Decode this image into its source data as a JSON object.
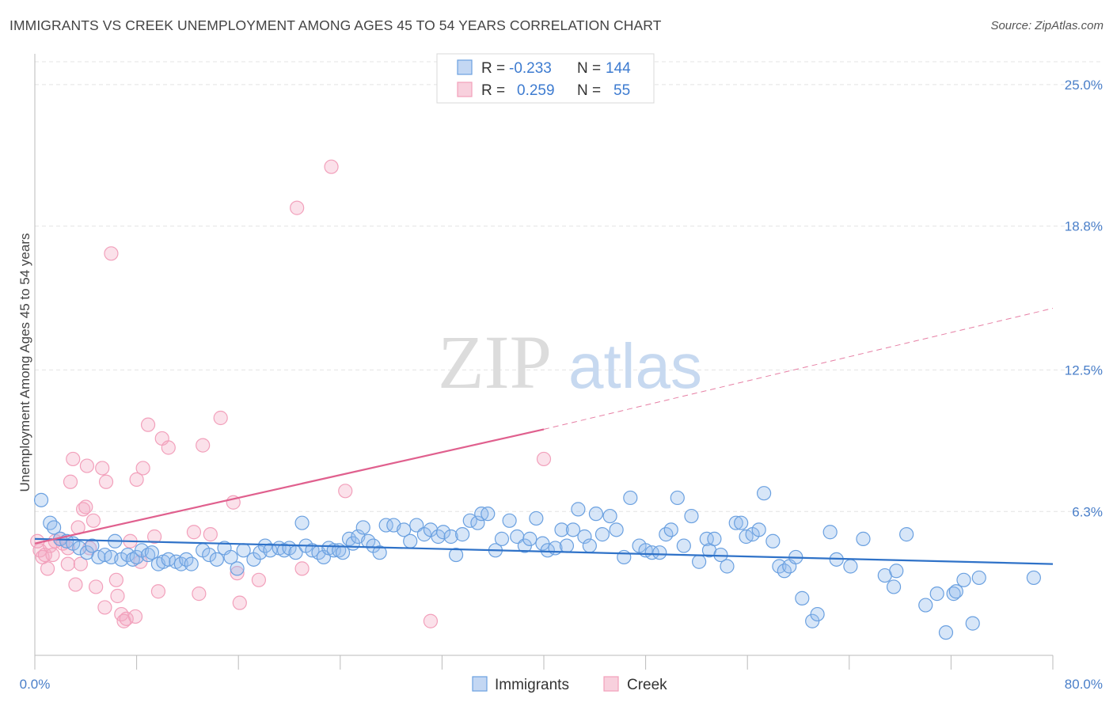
{
  "title": "IMMIGRANTS VS CREEK UNEMPLOYMENT AMONG AGES 45 TO 54 YEARS CORRELATION CHART",
  "source": "Source: ZipAtlas.com",
  "watermark": {
    "zip": "ZIP",
    "atlas": "atlas"
  },
  "colors": {
    "blue": "#6aa0e0",
    "blue_line": "#2f72c8",
    "pink": "#f2a0bb",
    "pink_line": "#e0608e",
    "tick": "#4a7fc9"
  },
  "legend_top": [
    {
      "r_label": "R =",
      "r_value": "-0.233",
      "n_label": "N =",
      "n_value": "144"
    },
    {
      "r_label": "R =",
      "r_value": "0.259",
      "n_label": "N =",
      "n_value": "55"
    }
  ],
  "chart_data": {
    "type": "scatter",
    "xlabel": "",
    "ylabel": "Unemployment Among Ages 45 to 54 years",
    "xlim": [
      0,
      80
    ],
    "ylim": [
      0,
      26
    ],
    "x_tick_labels": [
      "0.0%",
      "80.0%"
    ],
    "y_ticks": [
      6.3,
      12.5,
      18.8,
      25.0
    ],
    "y_tick_labels": [
      "6.3%",
      "12.5%",
      "18.8%",
      "25.0%"
    ],
    "grid": true,
    "legend_position": "bottom-center",
    "series": [
      {
        "name": "Immigrants",
        "color": "#6aa0e0",
        "trend": {
          "x": [
            0,
            80
          ],
          "y": [
            5.1,
            4.0
          ]
        },
        "points": [
          [
            0.5,
            6.8
          ],
          [
            1.2,
            5.8
          ],
          [
            1.5,
            5.6
          ],
          [
            2,
            5.1
          ],
          [
            2.5,
            5
          ],
          [
            3,
            4.9
          ],
          [
            3.5,
            4.7
          ],
          [
            4.1,
            4.5
          ],
          [
            4.5,
            4.8
          ],
          [
            5,
            4.3
          ],
          [
            5.5,
            4.4
          ],
          [
            6,
            4.3
          ],
          [
            6.3,
            5
          ],
          [
            6.8,
            4.2
          ],
          [
            7.3,
            4.4
          ],
          [
            7.7,
            4.2
          ],
          [
            8,
            4.3
          ],
          [
            8.4,
            4.6
          ],
          [
            8.9,
            4.4
          ],
          [
            9.2,
            4.5
          ],
          [
            9.7,
            4
          ],
          [
            10.1,
            4.1
          ],
          [
            10.5,
            4.2
          ],
          [
            11.1,
            4.1
          ],
          [
            11.5,
            4
          ],
          [
            11.9,
            4.2
          ],
          [
            12.3,
            4
          ],
          [
            13.2,
            4.6
          ],
          [
            13.7,
            4.4
          ],
          [
            14.3,
            4.2
          ],
          [
            14.9,
            4.7
          ],
          [
            15.4,
            4.3
          ],
          [
            15.9,
            3.8
          ],
          [
            16.4,
            4.6
          ],
          [
            17.2,
            4.2
          ],
          [
            17.7,
            4.5
          ],
          [
            18.1,
            4.8
          ],
          [
            18.5,
            4.6
          ],
          [
            19.2,
            4.7
          ],
          [
            19.6,
            4.6
          ],
          [
            20,
            4.7
          ],
          [
            20.5,
            4.5
          ],
          [
            21,
            5.8
          ],
          [
            21.3,
            4.8
          ],
          [
            21.8,
            4.6
          ],
          [
            22.3,
            4.5
          ],
          [
            22.7,
            4.3
          ],
          [
            23.1,
            4.7
          ],
          [
            23.5,
            4.6
          ],
          [
            23.9,
            4.6
          ],
          [
            24.2,
            4.5
          ],
          [
            24.7,
            5.1
          ],
          [
            25,
            4.9
          ],
          [
            25.4,
            5.2
          ],
          [
            25.8,
            5.6
          ],
          [
            26.2,
            5
          ],
          [
            26.6,
            4.8
          ],
          [
            27.1,
            4.5
          ],
          [
            27.6,
            5.7
          ],
          [
            28.2,
            5.7
          ],
          [
            29,
            5.5
          ],
          [
            29.5,
            5
          ],
          [
            30,
            5.7
          ],
          [
            30.6,
            5.3
          ],
          [
            31.1,
            5.5
          ],
          [
            31.7,
            5.2
          ],
          [
            32.1,
            5.4
          ],
          [
            32.7,
            5.2
          ],
          [
            33.1,
            4.4
          ],
          [
            33.6,
            5.3
          ],
          [
            34.2,
            5.9
          ],
          [
            34.8,
            5.8
          ],
          [
            35.1,
            6.2
          ],
          [
            35.6,
            6.2
          ],
          [
            36.2,
            4.6
          ],
          [
            36.7,
            5.1
          ],
          [
            37.3,
            5.9
          ],
          [
            37.9,
            5.2
          ],
          [
            38.5,
            4.8
          ],
          [
            38.9,
            5.1
          ],
          [
            39.4,
            6
          ],
          [
            39.9,
            4.9
          ],
          [
            40.3,
            4.6
          ],
          [
            40.9,
            4.7
          ],
          [
            41.4,
            5.5
          ],
          [
            41.8,
            4.8
          ],
          [
            42.3,
            5.5
          ],
          [
            42.7,
            6.4
          ],
          [
            43.2,
            5.2
          ],
          [
            43.6,
            4.8
          ],
          [
            44.1,
            6.2
          ],
          [
            44.6,
            5.3
          ],
          [
            45.2,
            6.1
          ],
          [
            45.7,
            5.5
          ],
          [
            46.3,
            4.3
          ],
          [
            46.8,
            6.9
          ],
          [
            47.5,
            4.8
          ],
          [
            48,
            4.6
          ],
          [
            48.5,
            4.5
          ],
          [
            49.1,
            4.5
          ],
          [
            49.6,
            5.3
          ],
          [
            50,
            5.5
          ],
          [
            50.5,
            6.9
          ],
          [
            51,
            4.8
          ],
          [
            51.6,
            6.1
          ],
          [
            52.2,
            4.1
          ],
          [
            52.8,
            5.1
          ],
          [
            53,
            4.6
          ],
          [
            53.4,
            5.1
          ],
          [
            53.9,
            4.4
          ],
          [
            54.4,
            3.9
          ],
          [
            55.1,
            5.8
          ],
          [
            55.5,
            5.8
          ],
          [
            55.9,
            5.2
          ],
          [
            56.4,
            5.3
          ],
          [
            56.9,
            5.5
          ],
          [
            57.3,
            7.1
          ],
          [
            58,
            5
          ],
          [
            58.5,
            3.9
          ],
          [
            58.9,
            3.7
          ],
          [
            59.3,
            3.9
          ],
          [
            59.8,
            4.3
          ],
          [
            60.3,
            2.5
          ],
          [
            61.1,
            1.5
          ],
          [
            61.5,
            1.8
          ],
          [
            62.5,
            5.4
          ],
          [
            63,
            4.2
          ],
          [
            64.1,
            3.9
          ],
          [
            65.1,
            5.1
          ],
          [
            66.8,
            3.5
          ],
          [
            67.5,
            3
          ],
          [
            67.7,
            3.7
          ],
          [
            68.5,
            5.3
          ],
          [
            70,
            2.2
          ],
          [
            70.9,
            2.7
          ],
          [
            71.6,
            1
          ],
          [
            72.2,
            2.7
          ],
          [
            72.4,
            2.8
          ],
          [
            73,
            3.3
          ],
          [
            73.7,
            1.4
          ],
          [
            74.2,
            3.4
          ],
          [
            78.5,
            3.4
          ]
        ]
      },
      {
        "name": "Creek",
        "color": "#f2a0bb",
        "trend": {
          "x": [
            0,
            40
          ],
          "y": [
            4.9,
            9.9
          ]
        },
        "trend_extension": {
          "x": [
            40,
            80
          ],
          "y": [
            9.9,
            15.2
          ]
        },
        "points": [
          [
            0.2,
            5
          ],
          [
            0.4,
            4.6
          ],
          [
            0.6,
            4.3
          ],
          [
            0.8,
            4.4
          ],
          [
            1,
            3.8
          ],
          [
            1.2,
            4.8
          ],
          [
            1.4,
            4.4
          ],
          [
            1.6,
            5
          ],
          [
            2,
            5.1
          ],
          [
            2.2,
            4.9
          ],
          [
            2.6,
            4.7
          ],
          [
            2.6,
            4
          ],
          [
            2.8,
            7.6
          ],
          [
            3,
            8.6
          ],
          [
            3.2,
            3.1
          ],
          [
            3.4,
            5.6
          ],
          [
            3.6,
            4
          ],
          [
            3.8,
            6.4
          ],
          [
            4,
            6.5
          ],
          [
            4.1,
            8.3
          ],
          [
            4.3,
            4.7
          ],
          [
            4.6,
            5.9
          ],
          [
            4.8,
            3
          ],
          [
            5.3,
            8.2
          ],
          [
            5.5,
            2.1
          ],
          [
            5.6,
            7.6
          ],
          [
            6,
            17.6
          ],
          [
            6.4,
            3.3
          ],
          [
            6.5,
            2.6
          ],
          [
            6.8,
            1.8
          ],
          [
            7,
            1.5
          ],
          [
            7.2,
            1.6
          ],
          [
            7.5,
            5
          ],
          [
            7.9,
            1.7
          ],
          [
            8,
            7.7
          ],
          [
            8.3,
            4.1
          ],
          [
            8.5,
            8.2
          ],
          [
            8.9,
            10.1
          ],
          [
            9.4,
            5.2
          ],
          [
            9.7,
            2.8
          ],
          [
            10,
            9.5
          ],
          [
            10.5,
            9.1
          ],
          [
            12.5,
            5.4
          ],
          [
            12.9,
            2.7
          ],
          [
            13.2,
            9.2
          ],
          [
            13.8,
            5.3
          ],
          [
            14.6,
            10.4
          ],
          [
            15.6,
            6.7
          ],
          [
            15.9,
            3.6
          ],
          [
            16.1,
            2.3
          ],
          [
            17.6,
            3.3
          ],
          [
            20.6,
            19.6
          ],
          [
            21,
            3.8
          ],
          [
            23.3,
            21.4
          ],
          [
            24.4,
            7.2
          ],
          [
            31.1,
            1.5
          ],
          [
            40,
            8.6
          ]
        ]
      }
    ],
    "legend": [
      "Immigrants",
      "Creek"
    ]
  }
}
